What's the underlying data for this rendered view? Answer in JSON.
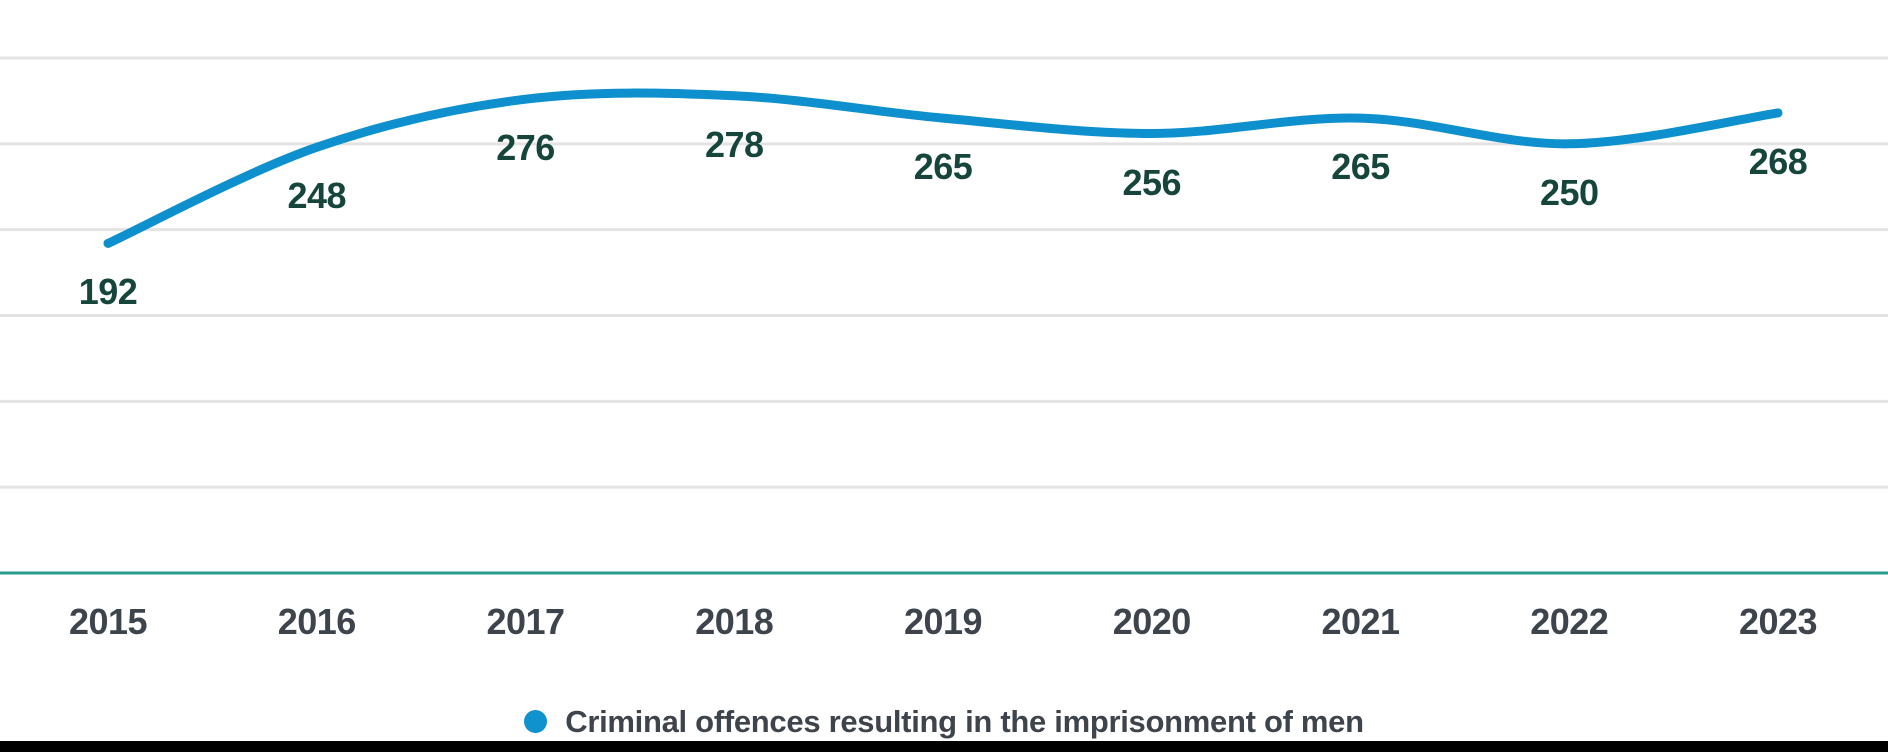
{
  "chart_data": {
    "type": "line",
    "title": "",
    "categories": [
      "2015",
      "2016",
      "2017",
      "2018",
      "2019",
      "2020",
      "2021",
      "2022",
      "2023"
    ],
    "series": [
      {
        "name": "Criminal offences resulting in the imprisonment of men",
        "values": [
          192,
          248,
          276,
          278,
          265,
          256,
          265,
          250,
          268
        ]
      }
    ],
    "xlabel": "",
    "ylabel": "",
    "ylim": [
      0,
      300
    ],
    "grid_step": 50,
    "grid": true,
    "y_tick_labels_visible": false,
    "data_labels_visible": true,
    "legend_position": "bottom-center",
    "line_style": "smooth-spline"
  },
  "legend": {
    "dot_icon": "circle",
    "label": "Criminal offences resulting in the imprisonment of men"
  },
  "colors": {
    "line": "#0f90ce",
    "legend_dot": "#1092cf",
    "data_label": "#16453c",
    "axis_label": "#3e444c",
    "legend_text": "#3e444c",
    "gridline": "#e3e3e3",
    "axis_line": "#2a9a8f",
    "background": "#ffffff",
    "bottom_bar": "#000000"
  }
}
